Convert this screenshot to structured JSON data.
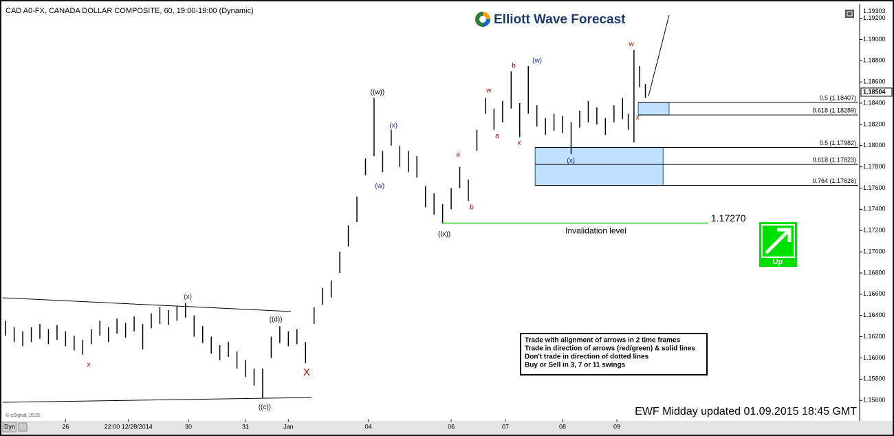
{
  "header": "CAD A0-FX, CANADA DOLLAR COMPOSITE, 60, 19:00-19:00 (Dynamic)",
  "logo": "Elliott Wave Forecast",
  "footer": "EWF Midday updated  01.09.2015  18:45 GMT",
  "copyright": "© eSignal, 2015",
  "toolbar": "Dyn",
  "signal": "Up",
  "notes": [
    "Trade with alignment of arrows in 2 time frames",
    "Trade in direction of arrows (red/green) & solid lines",
    "Don't trade in direction of dotted lines",
    "Buy or Sell in 3, 7 or 11 swings"
  ],
  "chart_data": {
    "type": "ohlc",
    "color": "#000000",
    "xlim": [
      0,
      300
    ],
    "ylim": [
      1.1542,
      1.1932
    ],
    "xticks": [
      {
        "value": 22,
        "label": "26"
      },
      {
        "value": 44,
        "label": "22:00 12/28/2014"
      },
      {
        "value": 65,
        "label": "30"
      },
      {
        "value": 85,
        "label": "31"
      },
      {
        "value": 100,
        "label": "Jan"
      },
      {
        "value": 128,
        "label": "04"
      },
      {
        "value": 157,
        "label": "06"
      },
      {
        "value": 176,
        "label": "07"
      },
      {
        "value": 196,
        "label": "08"
      },
      {
        "value": 215,
        "label": "09"
      }
    ],
    "yticks": [
      {
        "value": 1.156,
        "label": "1.15600"
      },
      {
        "value": 1.158,
        "label": "1.15800"
      },
      {
        "value": 1.16,
        "label": "1.16000"
      },
      {
        "value": 1.162,
        "label": "1.16200"
      },
      {
        "value": 1.164,
        "label": "1.16400"
      },
      {
        "value": 1.166,
        "label": "1.16600"
      },
      {
        "value": 1.168,
        "label": "1.16800"
      },
      {
        "value": 1.17,
        "label": "1.17000"
      },
      {
        "value": 1.172,
        "label": "1.17200"
      },
      {
        "value": 1.174,
        "label": "1.17400"
      },
      {
        "value": 1.176,
        "label": "1.17600"
      },
      {
        "value": 1.178,
        "label": "1.17800"
      },
      {
        "value": 1.18,
        "label": "1.18000"
      },
      {
        "value": 1.182,
        "label": "1.18200"
      },
      {
        "value": 1.184,
        "label": "1.18400"
      },
      {
        "value": 1.186,
        "label": "1.18600"
      },
      {
        "value": 1.188,
        "label": "1.18800"
      },
      {
        "value": 1.19,
        "label": "1.19000"
      },
      {
        "value": 1.192,
        "label": "1.19200"
      }
    ],
    "top_price": {
      "value": 1.19303,
      "label": "1.19303"
    },
    "last_price": {
      "value": 1.18504,
      "label": "1.18504"
    },
    "x": [
      1,
      4,
      7,
      10,
      13,
      16,
      19,
      22,
      25,
      28,
      31,
      34,
      37,
      40,
      43,
      46,
      49,
      52,
      55,
      58,
      61,
      64,
      67,
      70,
      73,
      76,
      79,
      82,
      85,
      88,
      91,
      94,
      97,
      100,
      103,
      106,
      109,
      112,
      115,
      118,
      121,
      124,
      127,
      130,
      133,
      136,
      139,
      142,
      145,
      148,
      151,
      154,
      157,
      160,
      163,
      166,
      169,
      172,
      175,
      178,
      181,
      184,
      187,
      190,
      193,
      196,
      199,
      202,
      205,
      208,
      211,
      214,
      217,
      219,
      221,
      223,
      225
    ],
    "high": [
      1.1635,
      1.1629,
      1.1625,
      1.1629,
      1.1632,
      1.1627,
      1.1631,
      1.1625,
      1.1621,
      1.1617,
      1.1627,
      1.1635,
      1.1629,
      1.1637,
      1.1633,
      1.1639,
      1.1632,
      1.1642,
      1.1648,
      1.1645,
      1.1649,
      1.1652,
      1.164,
      1.163,
      1.162,
      1.1612,
      1.1615,
      1.1606,
      1.1598,
      1.159,
      1.159,
      1.162,
      1.163,
      1.1625,
      1.1627,
      1.1615,
      1.1648,
      1.1666,
      1.1673,
      1.17,
      1.1725,
      1.1752,
      1.1788,
      1.1845,
      1.1795,
      1.1815,
      1.18,
      1.1795,
      1.179,
      1.1762,
      1.1755,
      1.1745,
      1.176,
      1.178,
      1.1768,
      1.1815,
      1.1845,
      1.1835,
      1.1842,
      1.187,
      1.184,
      1.1875,
      1.1838,
      1.1826,
      1.183,
      1.1828,
      1.1822,
      1.1833,
      1.1842,
      1.1836,
      1.1826,
      1.1838,
      1.1845,
      1.183,
      1.189,
      1.1875,
      1.1858
    ],
    "low": [
      1.1621,
      1.1615,
      1.1611,
      1.1615,
      1.1618,
      1.1613,
      1.1617,
      1.1611,
      1.1607,
      1.1603,
      1.1613,
      1.1621,
      1.1615,
      1.1623,
      1.1619,
      1.1625,
      1.1608,
      1.1628,
      1.1632,
      1.1631,
      1.1635,
      1.1638,
      1.162,
      1.1614,
      1.1604,
      1.1598,
      1.1601,
      1.159,
      1.1582,
      1.1574,
      1.1562,
      1.16,
      1.1614,
      1.1611,
      1.1613,
      1.1595,
      1.1632,
      1.165,
      1.1657,
      1.168,
      1.1705,
      1.1728,
      1.1772,
      1.179,
      1.1775,
      1.18,
      1.178,
      1.1775,
      1.177,
      1.1742,
      1.1735,
      1.1727,
      1.174,
      1.176,
      1.1748,
      1.1795,
      1.183,
      1.1815,
      1.1822,
      1.1835,
      1.1808,
      1.183,
      1.1818,
      1.181,
      1.1814,
      1.1812,
      1.1792,
      1.1817,
      1.1822,
      1.182,
      1.181,
      1.1822,
      1.1825,
      1.1815,
      1.1803,
      1.1855,
      1.1845
    ],
    "fib_levels": [
      {
        "value": 1.18407,
        "label": "0.5 (1.18407)"
      },
      {
        "value": 1.18289,
        "label": "0.618 (1.18289)"
      },
      {
        "value": 1.17982,
        "label": "0.5 (1.17982)"
      },
      {
        "value": 1.17823,
        "label": "0.618 (1.17823)"
      },
      {
        "value": 1.17626,
        "label": "0.764 (1.17626)"
      }
    ],
    "zones": [
      {
        "x": [
          222.5,
          233.3
        ],
        "levels": [
          0,
          1
        ]
      },
      {
        "x": [
          186.4,
          231.2
        ],
        "levels": [
          2,
          4
        ]
      }
    ],
    "invalidation": {
      "value": 1.1727,
      "label": "1.17270",
      "text": "Invalidation level",
      "x": [
        153.9,
        247
      ]
    },
    "wave_labels": [
      {
        "text": "x",
        "x": 30.1,
        "y": 1.15937,
        "color": "#c00000"
      },
      {
        "text": "(x)",
        "x": 64.8,
        "y": 1.16573,
        "color": "#1f1fa0"
      },
      {
        "text": "((d))",
        "x": 95.6,
        "y": 1.16359,
        "color": "#000000"
      },
      {
        "text": "X",
        "x": 106.4,
        "y": 1.1586,
        "color": "#c00000"
      },
      {
        "text": "((c))",
        "x": 91.7,
        "y": 1.15535,
        "color": "#000000"
      },
      {
        "text": "((w))",
        "x": 131.2,
        "y": 1.185,
        "color": "#000000"
      },
      {
        "text": "(w)",
        "x": 132,
        "y": 1.17617,
        "color": "#1f1fa0"
      },
      {
        "text": "(x)",
        "x": 136.8,
        "y": 1.18188,
        "color": "#1f1fa0"
      },
      {
        "text": "((x))",
        "x": 154.6,
        "y": 1.17163,
        "color": "#000000"
      },
      {
        "text": "a",
        "x": 159.4,
        "y": 1.17916,
        "color": "#c00000"
      },
      {
        "text": "b",
        "x": 164.2,
        "y": 1.17416,
        "color": "#c00000"
      },
      {
        "text": "w",
        "x": 170.2,
        "y": 1.18519,
        "color": "#c00000"
      },
      {
        "text": "a",
        "x": 173.1,
        "y": 1.18091,
        "color": "#c00000"
      },
      {
        "text": "b",
        "x": 178.9,
        "y": 1.18752,
        "color": "#c00000"
      },
      {
        "text": "x",
        "x": 180.8,
        "y": 1.18026,
        "color": "#c00000"
      },
      {
        "text": "(w)",
        "x": 187.1,
        "y": 1.18798,
        "color": "#1f1fa0"
      },
      {
        "text": "(x)",
        "x": 198.9,
        "y": 1.17857,
        "color": "#1f1fa0"
      },
      {
        "text": "w",
        "x": 220.1,
        "y": 1.18954,
        "color": "#c00000"
      },
      {
        "text": "x",
        "x": 222.3,
        "y": 1.18266,
        "color": "#c00000"
      }
    ]
  }
}
